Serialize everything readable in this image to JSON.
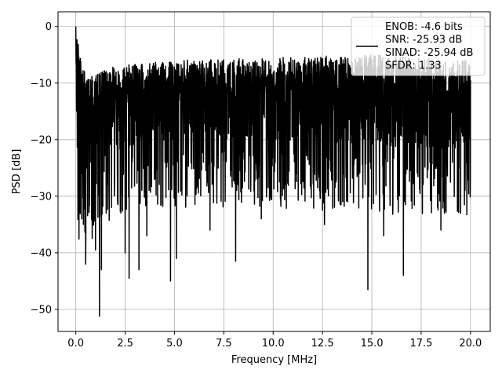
{
  "chart_data": {
    "type": "line",
    "title": "",
    "xlabel": "Frequency [MHz]",
    "ylabel": "PSD [dB]",
    "xlim": [
      -0.9,
      21.0
    ],
    "ylim": [
      -53.9,
      2.6
    ],
    "xticks": [
      0.0,
      2.5,
      5.0,
      7.5,
      10.0,
      12.5,
      15.0,
      17.5,
      20.0
    ],
    "xtick_labels": [
      "0.0",
      "2.5",
      "5.0",
      "7.5",
      "10.0",
      "12.5",
      "15.0",
      "17.5",
      "20.0"
    ],
    "yticks": [
      0,
      -10,
      -20,
      -30,
      -40,
      -50
    ],
    "ytick_labels": [
      "0",
      "−10",
      "−20",
      "−30",
      "−40",
      "−50"
    ],
    "grid": true,
    "legend_position": "upper-right",
    "legend_lines": [
      "ENOB: -4.6 bits",
      "SNR: -25.93 dB",
      "SINAD: -25.94 dB",
      "SFDR: 1.33"
    ],
    "series": [
      {
        "color": "#000000",
        "x_range": [
          0.0,
          20.0
        ],
        "envelope": [
          {
            "x": 0.0,
            "y": 0.0
          },
          {
            "x": 0.1,
            "y": -24.0
          },
          {
            "x": 0.3,
            "y": -22.0
          },
          {
            "x": 0.5,
            "y": -25.0
          },
          {
            "x": 1.0,
            "y": -20.0
          },
          {
            "x": 2.0,
            "y": -18.0
          },
          {
            "x": 3.0,
            "y": -17.0
          },
          {
            "x": 5.0,
            "y": -16.0
          },
          {
            "x": 10.0,
            "y": -16.0
          },
          {
            "x": 15.0,
            "y": -17.0
          },
          {
            "x": 20.0,
            "y": -18.0
          }
        ],
        "max_envelope": [
          {
            "x": 0.0,
            "y": 0.0
          },
          {
            "x": 0.5,
            "y": -9.0
          },
          {
            "x": 2.0,
            "y": -7.0
          },
          {
            "x": 5.0,
            "y": -6.0
          },
          {
            "x": 10.0,
            "y": -5.5
          },
          {
            "x": 15.0,
            "y": -5.0
          },
          {
            "x": 20.0,
            "y": -6.0
          }
        ],
        "dips": [
          {
            "x": 1.2,
            "y": -51.2
          },
          {
            "x": 1.3,
            "y": -43.0
          },
          {
            "x": 0.5,
            "y": -42.0
          },
          {
            "x": 2.7,
            "y": -44.5
          },
          {
            "x": 3.2,
            "y": -43.0
          },
          {
            "x": 4.8,
            "y": -45.0
          },
          {
            "x": 5.1,
            "y": -41.0
          },
          {
            "x": 8.1,
            "y": -41.5
          },
          {
            "x": 14.8,
            "y": -46.5
          },
          {
            "x": 16.6,
            "y": -44.0
          },
          {
            "x": 0.3,
            "y": -34.0
          },
          {
            "x": 0.9,
            "y": -35.0
          },
          {
            "x": 1.0,
            "y": -39.5
          },
          {
            "x": 2.5,
            "y": -40.0
          },
          {
            "x": 3.6,
            "y": -37.0
          },
          {
            "x": 6.8,
            "y": -36.0
          },
          {
            "x": 9.4,
            "y": -34.0
          },
          {
            "x": 12.6,
            "y": -35.0
          },
          {
            "x": 15.6,
            "y": -37.0
          },
          {
            "x": 18.5,
            "y": -36.0
          },
          {
            "x": 19.5,
            "y": -33.0
          }
        ]
      }
    ]
  }
}
